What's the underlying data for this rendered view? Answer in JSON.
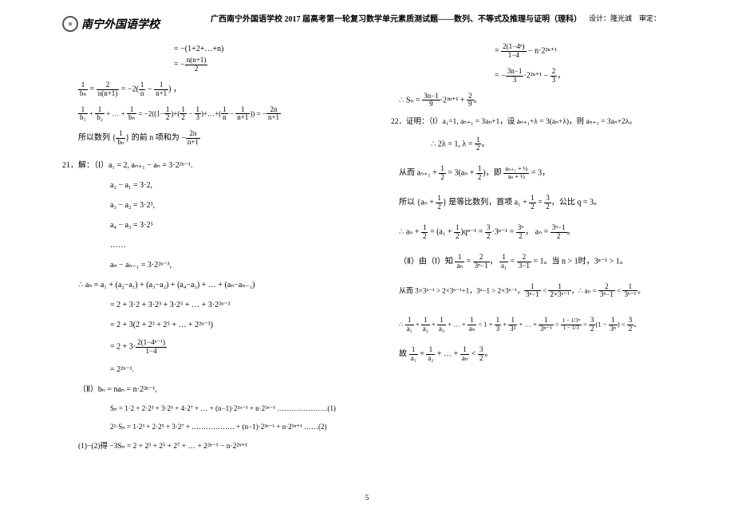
{
  "header": {
    "school_name": "南宁外国语学校",
    "title": "广西南宁外国语学校 2017 届高考第一轮复习数学单元素质测试题——数列、不等式及推理与证明（理科）",
    "designer_label": "设计：隆光诚",
    "reviewer_label": "审定："
  },
  "page_number": "5",
  "left_col": {
    "l1": "= −(1+2+…+n)",
    "l2_pre": "= −",
    "l2_num": "n(n+1)",
    "l2_den": "2",
    "l3_a_num": "1",
    "l3_a_den": "bₙ",
    "l3_b_pre": " = ",
    "l3_b_num": "2",
    "l3_b_den": "n(n+1)",
    "l3_c_pre": " = −2(",
    "l3_c_num": "1",
    "l3_c_den": "n",
    "l3_d_pre": " − ",
    "l3_d_num": "1",
    "l3_d_den": "n+1",
    "l3_end": ") ，",
    "l4_a_num": "1",
    "l4_a_den": "b₁",
    "l4_b_pre": " + ",
    "l4_b_num": "1",
    "l4_b_den": "b₂",
    "l4_c_pre": " + … + ",
    "l4_c_num": "1",
    "l4_c_den": "bₙ",
    "l4_d": " = −2((1−",
    "l4_d_num": "1",
    "l4_d_den": "2",
    "l4_e": ")+(",
    "l4_e_num": "1",
    "l4_e_den": "2",
    "l4_e2": " − ",
    "l4_e_num2": "1",
    "l4_e_den2": "3",
    "l4_f": ")+…+(",
    "l4_f_num": "1",
    "l4_f_den": "n",
    "l4_f2": " − ",
    "l4_f_num2": "1",
    "l4_f_den2": "n+1",
    "l4_g": ")) = −",
    "l4_g_num": "2n",
    "l4_g_den": "n+1",
    "l5_pre": "所以数列 {",
    "l5_num": "1",
    "l5_den": "bₙ",
    "l5_mid": "} 的前 n 项和为 −",
    "l5_b_num": "2n",
    "l5_b_den": "n+1",
    "q21": "21．解：（Ⅰ）a₁ = 2, aₙ₊₁ − aₙ = 3·2²ⁿ⁻¹.",
    "l7": "a₂ − a₁ = 3·2,",
    "l8": "a₃ − a₂ = 3·2³,",
    "l9": "a₄ − a₃ = 3·2⁵",
    "l10": "……",
    "l11": "aₙ − aₙ₋₁ = 3·2²ⁿ⁻³,",
    "l12": "∴ aₙ = a₁ + (a₂−a₁) + (a₃−a₂) + (a₄−a₃) + … + (aₙ−aₙ₋₁)",
    "l13": "= 2 + 3·2 + 3·2³ + 3·2⁵ + … + 3·2²ⁿ⁻³",
    "l14": "= 2 + 3(2 + 2³ + 2⁵ + … + 2²ⁿ⁻³)",
    "l15_pre": "= 2 + 3·",
    "l15_num": "2(1−4ⁿ⁻¹)",
    "l15_den": "1−4",
    "l16": "= 2²ⁿ⁻¹.",
    "l17": "（Ⅱ）bₙ = naₙ = n·2²ⁿ⁻¹,",
    "l18": "Sₙ = 1·2 + 2·2³ + 3·2⁵ + 4·2⁷ + … + (n−1)·2²ⁿ⁻³ + n·2²ⁿ⁻¹ …………………(1)",
    "l19": "2²·Sₙ =      1·2³ + 2·2⁵ + 3·2⁷ + ……………… + (n−1)·2²ⁿ⁻¹ + n·2²ⁿ⁺¹ ……(2)",
    "l20": "(1)−(2)得 −3Sₙ = 2 + 2³ + 2⁵ + 2⁷ + … + 2²ⁿ⁻¹ − n·2²ⁿ⁺¹"
  },
  "right_col": {
    "r1_pre": "= ",
    "r1_num": "2(1−4ⁿ)",
    "r1_den": "1−4",
    "r1_post": " − n·2²ⁿ⁺¹",
    "r2_pre": "= −",
    "r2_num": "3n−1",
    "r2_den": "3",
    "r2_mid": "·2²ⁿ⁺¹ − ",
    "r2_num2": "2",
    "r2_den2": "3",
    "r2_end": "，",
    "r3_pre": "∴ Sₙ = ",
    "r3_num": "3n−1",
    "r3_den": "9",
    "r3_mid": "·2²ⁿ⁺¹ + ",
    "r3_num2": "2",
    "r3_den2": "9",
    "r3_end": "。",
    "q22": "22．证明：（Ⅰ）a₁=1, aₙ₊₁ = 3aₙ+1，设 aₙ₊₁+λ = 3(aₙ+λ)，则 aₙ₊₁ = 3aₙ+2λ。",
    "r4_pre": "∴ 2λ = 1, λ = ",
    "r4_num": "1",
    "r4_den": "2",
    "r4_end": "。",
    "r5_pre": "从而 aₙ₊₁ + ",
    "r5_num": "1",
    "r5_den": "2",
    "r5_mid": " = 3(aₙ + ",
    "r5_num2": "1",
    "r5_den2": "2",
    "r5_mid2": ")，即 ",
    "r5_bignum": "aₙ₊₁ + ½",
    "r5_bigden": "aₙ + ½",
    "r5_end": " = 3，",
    "r6_pre": "所以 {aₙ + ",
    "r6_num": "1",
    "r6_den": "2",
    "r6_mid": "} 是等比数列，首项 a₁ + ",
    "r6_num2": "1",
    "r6_den2": "2",
    "r6_mid2": " = ",
    "r6_num3": "3",
    "r6_den3": "2",
    "r6_end": "，公比 q = 3。",
    "r7_pre": "∴ aₙ + ",
    "r7_num": "1",
    "r7_den": "2",
    "r7_mid": " = (a₁ + ",
    "r7_num2": "1",
    "r7_den2": "2",
    "r7_mid2": ")qⁿ⁻¹ = ",
    "r7_num3": "3",
    "r7_den3": "2",
    "r7_mid3": "·3ⁿ⁻¹ = ",
    "r7_num4": "3ⁿ",
    "r7_den4": "2",
    "r7_mid4": "， aₙ = ",
    "r7_num5": "3ⁿ−1",
    "r7_den5": "2",
    "r7_end": "。",
    "r8_pre": "（Ⅱ）由（Ⅰ）知 ",
    "r8_num": "1",
    "r8_den": "aₙ",
    "r8_mid": " = ",
    "r8_num2": "2",
    "r8_den2": "3ⁿ−1",
    "r8_mid2": "， ",
    "r8_num3": "1",
    "r8_den3": "a₁",
    "r8_mid3": " = ",
    "r8_num4": "2",
    "r8_den4": "3−1",
    "r8_end": " = 1。当 n > 1时，3ⁿ⁻¹ > 1。",
    "r9_pre": "从而 3×3ⁿ⁻¹ > 2×3ⁿ⁻¹+1，3ⁿ−1 > 2×3ⁿ⁻¹，",
    "r9_num": "1",
    "r9_den": "3ⁿ−1",
    "r9_mid": " < ",
    "r9_num2": "1",
    "r9_den2": "2×3ⁿ⁻¹",
    "r9_mid2": "，∴ aₙ = ",
    "r9_num3": "2",
    "r9_den3": "3ⁿ−1",
    "r9_mid3": " < ",
    "r9_num4": "1",
    "r9_den4": "3ⁿ⁻¹",
    "r9_end": "。",
    "r10_pre": "∴ ",
    "r10_num": "1",
    "r10_den": "a₁",
    "r10_a": " + ",
    "r10_num2": "1",
    "r10_den2": "a₂",
    "r10_b": " + ",
    "r10_num3": "1",
    "r10_den3": "a₃",
    "r10_c": " + … + ",
    "r10_num4": "1",
    "r10_den4": "aₙ",
    "r10_d": " < 1 + ",
    "r10_num5": "1",
    "r10_den5": "3",
    "r10_e": " + ",
    "r10_num6": "1",
    "r10_den6": "3²",
    "r10_f": " + … + ",
    "r10_num7": "1",
    "r10_den7": "3ⁿ⁻¹",
    "r10_g": " = ",
    "r10_bignum": "1 − 1/3ⁿ",
    "r10_bigden": "1 − 1/3",
    "r10_h": " = ",
    "r10_num8": "3",
    "r10_den8": "2",
    "r10_i": "(1 − ",
    "r10_num9": "1",
    "r10_den9": "3ⁿ",
    "r10_j": ") < ",
    "r10_num10": "3",
    "r10_den10": "2",
    "r10_end": "。",
    "r11_pre": "故 ",
    "r11_num": "1",
    "r11_den": "a₁",
    "r11_a": " + ",
    "r11_num2": "1",
    "r11_den2": "a₂",
    "r11_b": " + … + ",
    "r11_num3": "1",
    "r11_den3": "aₙ",
    "r11_c": " < ",
    "r11_num4": "3",
    "r11_den4": "2",
    "r11_end": "。"
  },
  "style": {
    "background": "#ffffff",
    "text_color": "#000000",
    "font_main": "SimSun",
    "font_math": "Times New Roman",
    "title_fontsize": 10,
    "body_fontsize": 10,
    "frac_fontsize": 9
  }
}
